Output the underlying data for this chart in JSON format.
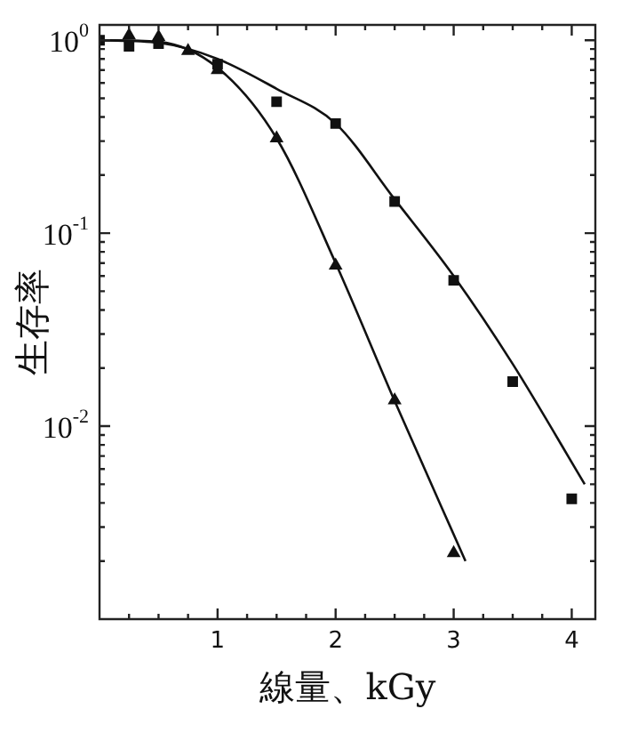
{
  "chart_data": {
    "type": "scatter",
    "xlabel": "線量、kGy",
    "ylabel": "生存率",
    "log": "y",
    "grid": false,
    "legend": false,
    "xlim": [
      0,
      4.2
    ],
    "ylim": [
      0.001,
      1.2
    ],
    "xticks": [
      {
        "value": 0.25,
        "label": null
      },
      {
        "value": 0.5,
        "label": null
      },
      {
        "value": 0.75,
        "label": null
      },
      1,
      {
        "value": 1.25,
        "label": null
      },
      {
        "value": 1.5,
        "label": null
      },
      {
        "value": 1.75,
        "label": null
      },
      2,
      {
        "value": 2.25,
        "label": null
      },
      {
        "value": 2.5,
        "label": null
      },
      {
        "value": 2.75,
        "label": null
      },
      3,
      {
        "value": 3.25,
        "label": null
      },
      {
        "value": 3.5,
        "label": null
      },
      {
        "value": 3.75,
        "label": null
      },
      4
    ],
    "yticks": [
      {
        "value": 0.002,
        "label": null
      },
      {
        "value": 0.003,
        "label": null
      },
      {
        "value": 0.004,
        "label": null
      },
      {
        "value": 0.005,
        "label": null
      },
      {
        "value": 0.006,
        "label": null
      },
      {
        "value": 0.007,
        "label": null
      },
      {
        "value": 0.008,
        "label": null
      },
      {
        "value": 0.009,
        "label": null
      },
      {
        "value": 0.01,
        "label": "10$^{-2}$"
      },
      {
        "value": 0.02,
        "label": null
      },
      {
        "value": 0.03,
        "label": null
      },
      {
        "value": 0.04,
        "label": null
      },
      {
        "value": 0.05,
        "label": null
      },
      {
        "value": 0.06,
        "label": null
      },
      {
        "value": 0.07,
        "label": null
      },
      {
        "value": 0.08,
        "label": null
      },
      {
        "value": 0.09,
        "label": null
      },
      {
        "value": 0.1,
        "label": "10$^{-1}$"
      },
      {
        "value": 0.2,
        "label": null
      },
      {
        "value": 0.3,
        "label": null
      },
      {
        "value": 0.4,
        "label": null
      },
      {
        "value": 0.5,
        "label": null
      },
      {
        "value": 0.6,
        "label": null
      },
      {
        "value": 0.7,
        "label": null
      },
      {
        "value": 0.8,
        "label": null
      },
      {
        "value": 0.9,
        "label": null
      },
      {
        "value": 1,
        "label": "10$^{0}$"
      }
    ],
    "series": [
      {
        "type": "scatter",
        "marker": "square",
        "color": "#111111",
        "x": [
          0,
          0.25,
          0.5,
          1,
          1.5,
          2,
          2.5,
          3,
          3.5,
          4
        ],
        "values": [
          1.0,
          0.93,
          0.96,
          0.75,
          0.48,
          0.37,
          0.146,
          0.057,
          0.017,
          0.0042
        ]
      },
      {
        "type": "scatter",
        "marker": "triangle",
        "color": "#111111",
        "x": [
          0.25,
          0.5,
          0.75,
          1,
          1.5,
          2,
          2.5,
          3
        ],
        "values": [
          1.06,
          1.04,
          0.88,
          0.7,
          0.31,
          0.068,
          0.0136,
          0.0022
        ]
      },
      {
        "type": "line",
        "marker": "none",
        "line_style": "solid",
        "color": "#111111",
        "x": [
          0,
          0.5,
          1,
          1.5,
          2,
          2.5,
          3,
          3.5,
          4.11
        ],
        "values": [
          1.0,
          0.97,
          0.8,
          0.56,
          0.37,
          0.15,
          0.06,
          0.021,
          0.005
        ]
      },
      {
        "type": "line",
        "marker": "none",
        "line_style": "solid",
        "color": "#111111",
        "x": [
          0,
          0.5,
          1,
          1.5,
          2,
          2.5,
          3.1
        ],
        "values": [
          1.0,
          0.98,
          0.72,
          0.31,
          0.07,
          0.0135,
          0.002
        ]
      }
    ]
  }
}
